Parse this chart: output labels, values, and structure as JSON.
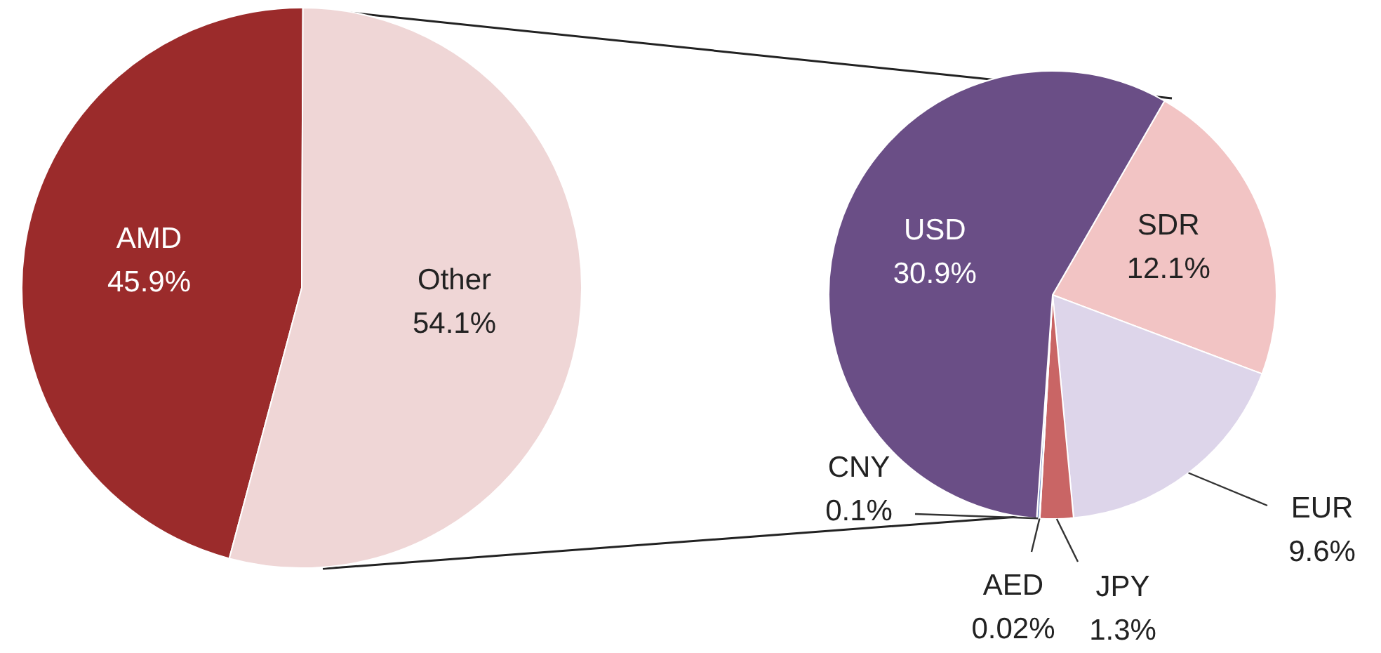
{
  "chart_data": [
    {
      "type": "pie",
      "categories": [
        "AMD",
        "Other"
      ],
      "values": [
        45.9,
        54.1
      ],
      "value_labels": [
        "45.9%",
        "54.1%"
      ],
      "colors": [
        "#9b2b2b",
        "#efd6d6"
      ]
    },
    {
      "type": "pie",
      "categories": [
        "SDR",
        "EUR",
        "JPY",
        "AED",
        "CNY",
        "USD"
      ],
      "values": [
        12.1,
        9.6,
        1.3,
        0.02,
        0.1,
        30.9
      ],
      "value_labels": [
        "12.1%",
        "9.6%",
        "1.3%",
        "0.02%",
        "0.1%",
        "30.9%"
      ],
      "colors": [
        "#f2c4c4",
        "#ddd5ea",
        "#c96565",
        "#8fb0cc",
        "#7d93c4",
        "#6a4e86"
      ]
    }
  ]
}
